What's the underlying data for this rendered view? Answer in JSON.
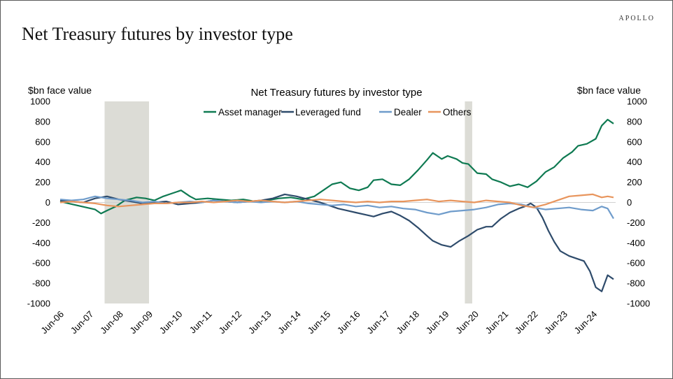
{
  "brand": "APOLLO",
  "page_title": "Net Treasury futures by investor type",
  "chart_data": {
    "type": "line",
    "title": "Net Treasury futures by investor type",
    "ylabel_left": "$bn face value",
    "ylabel_right": "$bn face value",
    "xlabel": "",
    "ylim": [
      -1000,
      1000
    ],
    "yticks": [
      1000,
      800,
      600,
      400,
      200,
      0,
      -200,
      -400,
      -600,
      -800,
      -1000
    ],
    "ytick_labels": [
      "1000",
      "800",
      "600",
      "400",
      "200",
      "0",
      "-200",
      "-400",
      "-600",
      "-800",
      "-1000"
    ],
    "xlim": [
      2006.42,
      2025.17
    ],
    "xticks": [
      2006.42,
      2007.42,
      2008.42,
      2009.42,
      2010.42,
      2011.42,
      2012.42,
      2013.42,
      2014.42,
      2015.42,
      2016.42,
      2017.42,
      2018.42,
      2019.42,
      2020.42,
      2021.42,
      2022.42,
      2023.42,
      2024.42
    ],
    "xtick_labels": [
      "Jun-06",
      "Jun-07",
      "Jun-08",
      "Jun-09",
      "Jun-10",
      "Jun-11",
      "Jun-12",
      "Jun-13",
      "Jun-14",
      "Jun-15",
      "Jun-16",
      "Jun-17",
      "Jun-18",
      "Jun-19",
      "Jun-20",
      "Jun-21",
      "Jun-22",
      "Jun-23",
      "Jun-24"
    ],
    "recessions": [
      [
        2007.92,
        2009.42
      ],
      [
        2020.08,
        2020.33
      ]
    ],
    "legend_position": "top-center",
    "grid": false,
    "series": [
      {
        "name": "Asset manager",
        "color": "#0f7a52",
        "x": [
          2006.42,
          2006.7,
          2007.0,
          2007.3,
          2007.6,
          2007.8,
          2008.0,
          2008.3,
          2008.6,
          2009.0,
          2009.3,
          2009.6,
          2009.9,
          2010.2,
          2010.5,
          2010.8,
          2011.0,
          2011.4,
          2011.8,
          2012.2,
          2012.6,
          2013.0,
          2013.4,
          2013.8,
          2014.2,
          2014.6,
          2015.0,
          2015.3,
          2015.6,
          2015.9,
          2016.2,
          2016.5,
          2016.8,
          2017.0,
          2017.3,
          2017.6,
          2017.9,
          2018.2,
          2018.5,
          2018.8,
          2019.0,
          2019.3,
          2019.5,
          2019.8,
          2020.0,
          2020.2,
          2020.5,
          2020.8,
          2021.0,
          2021.3,
          2021.6,
          2021.9,
          2022.2,
          2022.5,
          2022.8,
          2023.1,
          2023.4,
          2023.7,
          2023.9,
          2024.2,
          2024.5,
          2024.7,
          2024.9,
          2025.1
        ],
        "y": [
          10,
          -10,
          -30,
          -50,
          -70,
          -110,
          -80,
          -40,
          20,
          50,
          40,
          20,
          60,
          90,
          120,
          60,
          30,
          40,
          30,
          20,
          30,
          10,
          20,
          40,
          50,
          30,
          60,
          120,
          180,
          200,
          140,
          120,
          150,
          220,
          230,
          180,
          170,
          230,
          320,
          420,
          490,
          430,
          460,
          430,
          390,
          380,
          290,
          280,
          230,
          200,
          160,
          180,
          150,
          210,
          300,
          350,
          440,
          500,
          560,
          580,
          630,
          760,
          820,
          780
        ]
      },
      {
        "name": "Leveraged fund",
        "color": "#2e4b6b",
        "x": [
          2006.42,
          2006.8,
          2007.2,
          2007.6,
          2008.0,
          2008.4,
          2008.8,
          2009.2,
          2009.6,
          2010.0,
          2010.4,
          2010.8,
          2011.2,
          2011.6,
          2012.0,
          2012.4,
          2012.8,
          2013.2,
          2013.6,
          2014.0,
          2014.4,
          2014.8,
          2015.2,
          2015.5,
          2015.8,
          2016.1,
          2016.4,
          2016.7,
          2017.0,
          2017.3,
          2017.6,
          2017.9,
          2018.2,
          2018.5,
          2018.8,
          2019.0,
          2019.3,
          2019.6,
          2019.9,
          2020.2,
          2020.5,
          2020.8,
          2021.0,
          2021.3,
          2021.6,
          2021.9,
          2022.1,
          2022.3,
          2022.5,
          2022.7,
          2022.9,
          2023.1,
          2023.3,
          2023.6,
          2023.9,
          2024.1,
          2024.3,
          2024.5,
          2024.7,
          2024.9,
          2025.1
        ],
        "y": [
          20,
          10,
          0,
          40,
          60,
          30,
          10,
          -10,
          0,
          10,
          -20,
          -10,
          0,
          20,
          10,
          0,
          10,
          20,
          40,
          80,
          60,
          30,
          0,
          -30,
          -60,
          -80,
          -100,
          -120,
          -140,
          -110,
          -90,
          -130,
          -180,
          -250,
          -330,
          -380,
          -420,
          -440,
          -380,
          -330,
          -270,
          -240,
          -240,
          -160,
          -100,
          -60,
          -40,
          -10,
          -50,
          -150,
          -280,
          -390,
          -480,
          -530,
          -560,
          -580,
          -680,
          -840,
          -880,
          -720,
          -760
        ]
      },
      {
        "name": "Dealer",
        "color": "#6f9ccb",
        "x": [
          2006.42,
          2006.8,
          2007.2,
          2007.6,
          2008.0,
          2008.4,
          2008.8,
          2009.2,
          2009.6,
          2010.0,
          2010.4,
          2010.8,
          2011.2,
          2011.6,
          2012.0,
          2012.4,
          2012.8,
          2013.2,
          2013.6,
          2014.0,
          2014.4,
          2014.8,
          2015.2,
          2015.6,
          2016.0,
          2016.4,
          2016.8,
          2017.2,
          2017.6,
          2018.0,
          2018.4,
          2018.8,
          2019.2,
          2019.6,
          2020.0,
          2020.4,
          2020.8,
          2021.2,
          2021.6,
          2022.0,
          2022.4,
          2022.8,
          2023.2,
          2023.6,
          2024.0,
          2024.4,
          2024.7,
          2024.9,
          2025.1
        ],
        "y": [
          30,
          20,
          30,
          60,
          40,
          30,
          20,
          0,
          10,
          -10,
          0,
          10,
          0,
          20,
          10,
          0,
          10,
          0,
          10,
          0,
          10,
          -10,
          -20,
          -30,
          -20,
          -40,
          -30,
          -50,
          -40,
          -60,
          -70,
          -100,
          -120,
          -90,
          -80,
          -70,
          -50,
          -20,
          -10,
          -20,
          -50,
          -70,
          -60,
          -50,
          -70,
          -80,
          -40,
          -60,
          -160
        ]
      },
      {
        "name": "Others",
        "color": "#e8955d",
        "x": [
          2006.42,
          2006.8,
          2007.2,
          2007.6,
          2008.0,
          2008.4,
          2008.8,
          2009.2,
          2009.6,
          2010.0,
          2010.4,
          2010.8,
          2011.2,
          2011.6,
          2012.0,
          2012.4,
          2012.8,
          2013.2,
          2013.6,
          2014.0,
          2014.4,
          2014.8,
          2015.2,
          2015.6,
          2016.0,
          2016.4,
          2016.8,
          2017.2,
          2017.6,
          2018.0,
          2018.4,
          2018.8,
          2019.2,
          2019.6,
          2020.0,
          2020.4,
          2020.8,
          2021.2,
          2021.6,
          2022.0,
          2022.4,
          2022.8,
          2023.2,
          2023.6,
          2024.0,
          2024.4,
          2024.7,
          2024.9,
          2025.1
        ],
        "y": [
          0,
          10,
          0,
          -10,
          -30,
          -40,
          -30,
          -20,
          -10,
          -10,
          0,
          0,
          10,
          0,
          10,
          20,
          10,
          20,
          10,
          0,
          10,
          20,
          30,
          20,
          10,
          0,
          10,
          0,
          10,
          10,
          20,
          30,
          10,
          20,
          10,
          0,
          20,
          10,
          0,
          -30,
          -50,
          -20,
          20,
          60,
          70,
          80,
          50,
          60,
          50
        ]
      }
    ]
  }
}
